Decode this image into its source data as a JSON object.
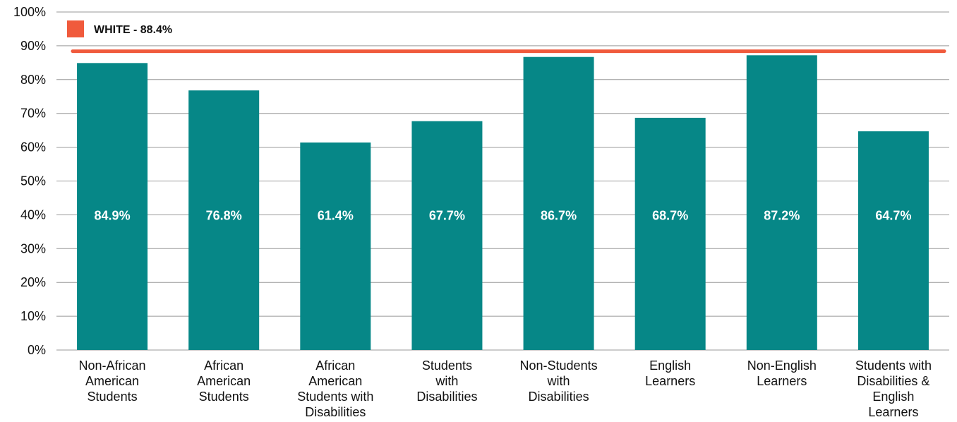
{
  "chart_data": {
    "type": "bar",
    "categories": [
      "Non-African American Students",
      "African American Students",
      "African American Students with Disabilities",
      "Students with Disabilities",
      "Non-Students with Disabilities",
      "English Learners",
      "Non-English Learners",
      "Students with Disabilities & English Learners"
    ],
    "category_lines": [
      [
        "Non-African",
        "American",
        "Students"
      ],
      [
        "African",
        "American",
        "Students"
      ],
      [
        "African",
        "American",
        "Students with",
        "Disabilities"
      ],
      [
        "Students",
        "with",
        "Disabilities"
      ],
      [
        "Non-Students",
        "with",
        "Disabilities"
      ],
      [
        "English",
        "Learners"
      ],
      [
        "Non-English",
        "Learners"
      ],
      [
        "Students with",
        "Disabilities &",
        "English",
        "Learners"
      ]
    ],
    "values": [
      84.9,
      76.8,
      61.4,
      67.7,
      86.7,
      68.7,
      87.2,
      64.7
    ],
    "data_labels": [
      "84.9%",
      "76.8%",
      "61.4%",
      "67.7%",
      "86.7%",
      "68.7%",
      "87.2%",
      "64.7%"
    ],
    "y_ticks": [
      0,
      10,
      20,
      30,
      40,
      50,
      60,
      70,
      80,
      90,
      100
    ],
    "y_tick_labels": [
      "0%",
      "10%",
      "20%",
      "30%",
      "40%",
      "50%",
      "60%",
      "70%",
      "80%",
      "90%",
      "100%"
    ],
    "ylim": [
      0,
      100
    ],
    "grid": true,
    "title": "",
    "xlabel": "",
    "ylabel": "",
    "reference_line": {
      "label": "WHITE - 88.4%",
      "value": 88.4,
      "color": "#f05a3c"
    },
    "legend_position": "top-left",
    "colors": {
      "bar": "#068787",
      "grid": "#999999",
      "reference": "#f05a3c",
      "bar_label": "#ffffff"
    }
  }
}
